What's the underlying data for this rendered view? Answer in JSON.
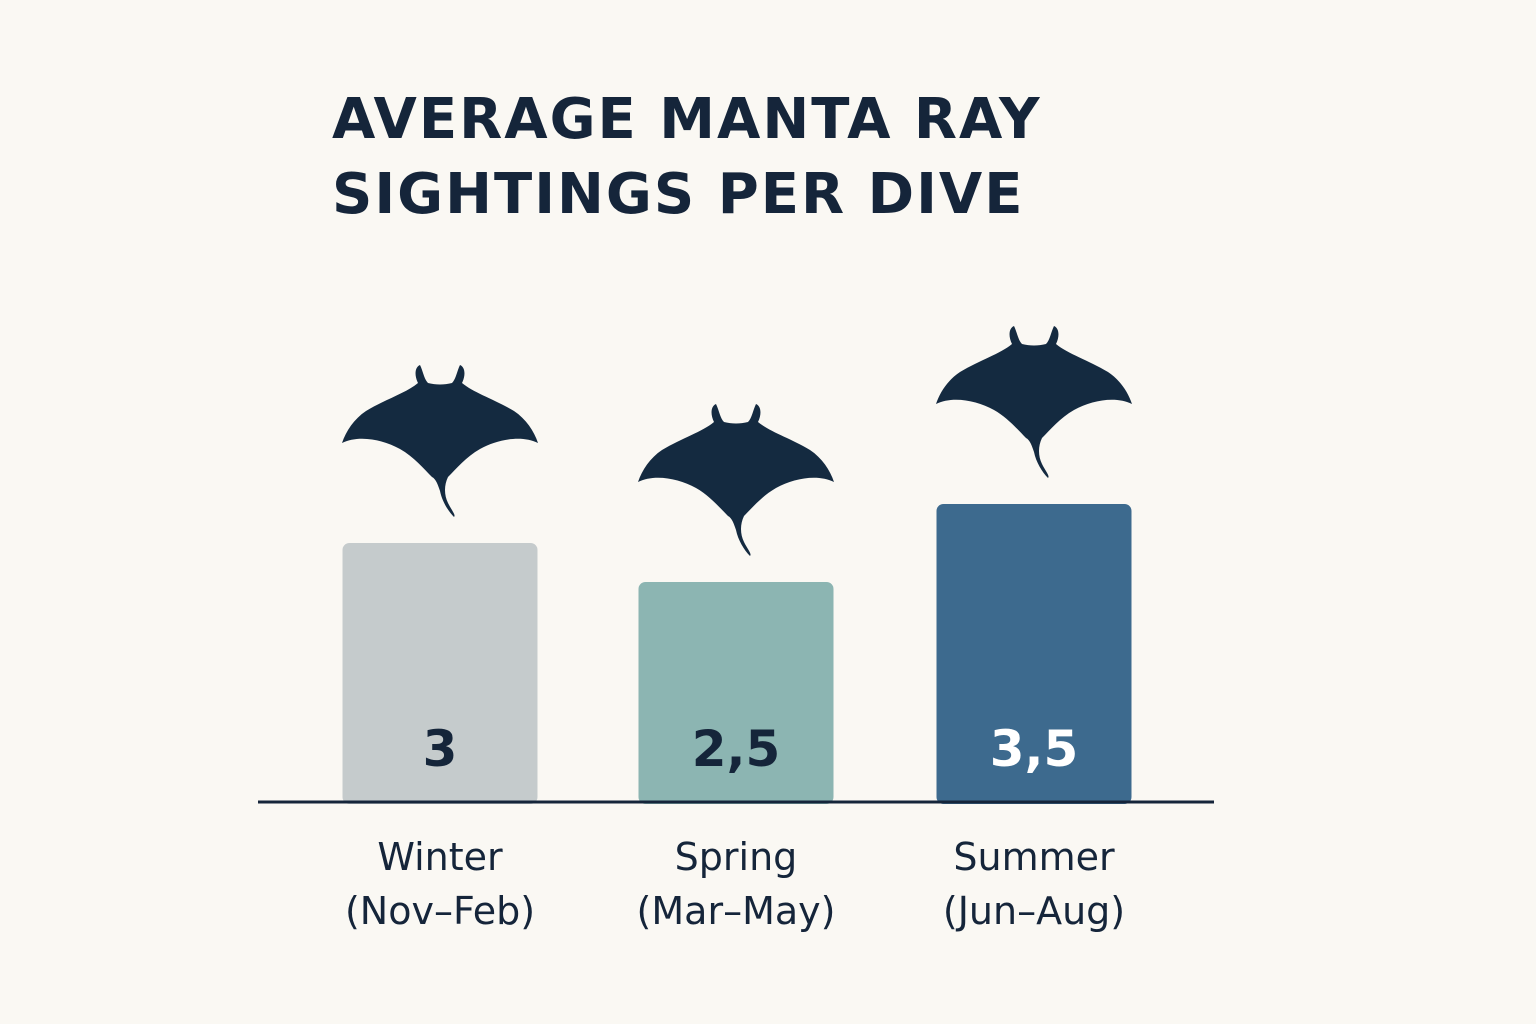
{
  "chart_data": {
    "type": "bar",
    "title_lines": [
      "AVERAGE MANTA RAY",
      "SIGHTINGS PER DIVE"
    ],
    "categories": [
      {
        "name": "Winter",
        "period": "(Nov–Feb)"
      },
      {
        "name": "Spring",
        "period": "(Mar–May)"
      },
      {
        "name": "Summer",
        "period": "(Jun–Aug)"
      }
    ],
    "values": [
      3,
      2.5,
      3.5
    ],
    "value_labels": [
      "3",
      "2,5",
      "3,5"
    ],
    "bar_colors": [
      "#c5cbcc",
      "#8cb5b2",
      "#3d6a8e"
    ],
    "value_label_colors": [
      "#15253a",
      "#15253a",
      "#ffffff"
    ],
    "icon_color": "#142a40",
    "axis_color": "#15253a",
    "icon": "manta-ray-icon",
    "grid": false,
    "legend": "none"
  }
}
